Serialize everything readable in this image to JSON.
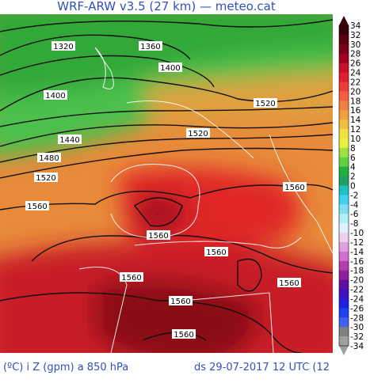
{
  "header": {
    "title": "WRF-ARW v3.5 (27 km) — meteo.cat"
  },
  "footer": {
    "left": "(ºC) i Z (gpm) a 850 hPa",
    "right": "ds 29-07-2017 12 UTC (12"
  },
  "legend": {
    "labels": [
      34,
      32,
      30,
      28,
      26,
      24,
      22,
      20,
      18,
      16,
      14,
      12,
      10,
      8,
      6,
      4,
      2,
      0,
      -2,
      -4,
      -6,
      -8,
      -10,
      -12,
      -14,
      -16,
      -18,
      -20,
      -22,
      -24,
      -26,
      -28,
      -30,
      -32,
      -34
    ],
    "colors": [
      "#3a0008",
      "#5a0010",
      "#7a0018",
      "#a00020",
      "#c8102a",
      "#e02030",
      "#f03a3a",
      "#f06040",
      "#f08040",
      "#f0a040",
      "#f0c040",
      "#f0e040",
      "#e8f040",
      "#a0e040",
      "#60d040",
      "#20b040",
      "#20a060",
      "#20c0c0",
      "#40d0f0",
      "#80e0f0",
      "#b0f0f8",
      "#e0f0ff",
      "#f0d0f0",
      "#e0a0e0",
      "#d070d0",
      "#b040b0",
      "#9020a0",
      "#6010a0",
      "#4010c0",
      "#2020e0",
      "#2040f0",
      "#4060f0",
      "#808080",
      "#a0a0a0"
    ]
  },
  "contours": [
    "1320",
    "1360",
    "1400",
    "1400",
    "1520",
    "1520",
    "1440",
    "1480",
    "1520",
    "1560",
    "1560",
    "1560",
    "1560",
    "1560",
    "1560",
    "1560",
    "1560"
  ]
}
